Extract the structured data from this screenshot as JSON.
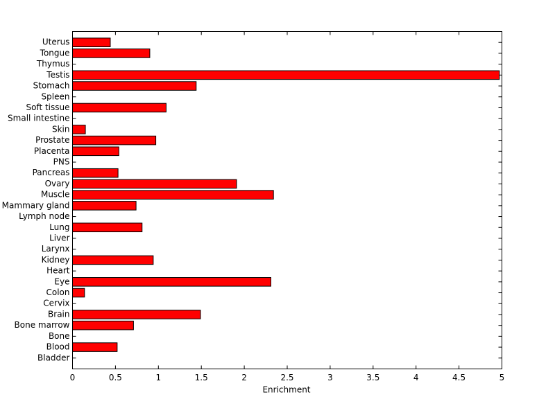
{
  "chart_data": {
    "type": "barh",
    "categories": [
      "Bladder",
      "Blood",
      "Bone",
      "Bone marrow",
      "Brain",
      "Cervix",
      "Colon",
      "Eye",
      "Heart",
      "Kidney",
      "Larynx",
      "Liver",
      "Lung",
      "Lymph node",
      "Mammary gland",
      "Muscle",
      "Ovary",
      "Pancreas",
      "PNS",
      "Placenta",
      "Prostate",
      "Skin",
      "Small intestine",
      "Soft tissue",
      "Spleen",
      "Stomach",
      "Testis",
      "Thymus",
      "Tongue",
      "Uterus"
    ],
    "values": [
      0,
      0.52,
      0,
      0.71,
      1.49,
      0,
      0.14,
      2.31,
      0,
      0.94,
      0,
      0,
      0.81,
      0,
      0.74,
      2.34,
      1.91,
      0.53,
      0,
      0.54,
      0.97,
      0.15,
      0,
      1.09,
      0,
      1.44,
      4.97,
      0,
      0.9,
      0.44
    ],
    "color": "#ff0000",
    "xlabel": "Enrichment",
    "xlim": [
      0,
      5
    ],
    "xticks": [
      0,
      0.5,
      1,
      1.5,
      2,
      2.5,
      3,
      3.5,
      4,
      4.5,
      5
    ]
  }
}
